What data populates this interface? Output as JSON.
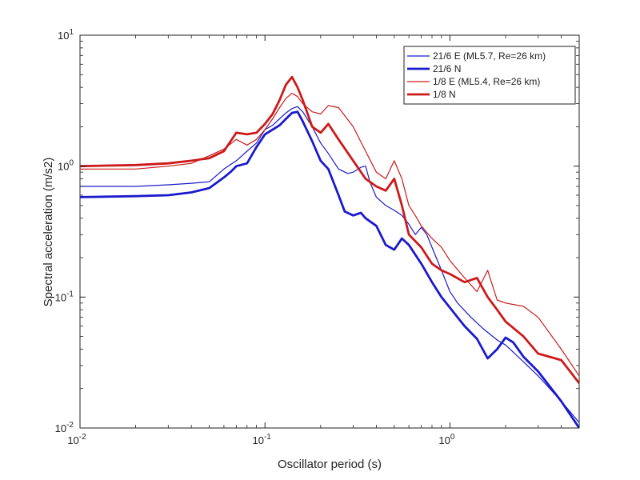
{
  "chart_data": {
    "type": "line",
    "title": "",
    "xlabel": "Oscillator period (s)",
    "ylabel": "Spectral acceleration (m/s2)",
    "xscale": "log",
    "yscale": "log",
    "xlim": [
      0.01,
      5
    ],
    "ylim": [
      0.01,
      10
    ],
    "grid": false,
    "legend_position": "top-right",
    "x_ticks": [
      {
        "value": 0.01,
        "base": "10",
        "exp": "-2"
      },
      {
        "value": 0.1,
        "base": "10",
        "exp": "-1"
      },
      {
        "value": 1,
        "base": "10",
        "exp": "0"
      }
    ],
    "y_ticks": [
      {
        "value": 0.01,
        "base": "10",
        "exp": "-2"
      },
      {
        "value": 0.1,
        "base": "10",
        "exp": "-1"
      },
      {
        "value": 1,
        "base": "10",
        "exp": "0"
      },
      {
        "value": 10,
        "base": "10",
        "exp": "1"
      }
    ],
    "series": [
      {
        "name": "21/6 E (ML5.7, Re=26 km)",
        "color": "#1a1acc",
        "weight": "thin",
        "points": [
          [
            0.01,
            0.7
          ],
          [
            0.02,
            0.7
          ],
          [
            0.03,
            0.72
          ],
          [
            0.04,
            0.74
          ],
          [
            0.05,
            0.76
          ],
          [
            0.06,
            0.95
          ],
          [
            0.07,
            1.1
          ],
          [
            0.08,
            1.3
          ],
          [
            0.09,
            1.5
          ],
          [
            0.1,
            1.9
          ],
          [
            0.11,
            2.05
          ],
          [
            0.12,
            2.3
          ],
          [
            0.13,
            2.55
          ],
          [
            0.14,
            2.75
          ],
          [
            0.15,
            2.85
          ],
          [
            0.16,
            2.6
          ],
          [
            0.18,
            2.0
          ],
          [
            0.2,
            1.5
          ],
          [
            0.22,
            1.25
          ],
          [
            0.25,
            0.95
          ],
          [
            0.28,
            0.88
          ],
          [
            0.3,
            0.9
          ],
          [
            0.33,
            0.98
          ],
          [
            0.35,
            1.0
          ],
          [
            0.37,
            0.75
          ],
          [
            0.4,
            0.58
          ],
          [
            0.45,
            0.5
          ],
          [
            0.5,
            0.46
          ],
          [
            0.55,
            0.42
          ],
          [
            0.6,
            0.36
          ],
          [
            0.65,
            0.3
          ],
          [
            0.7,
            0.34
          ],
          [
            0.75,
            0.3
          ],
          [
            0.8,
            0.24
          ],
          [
            0.9,
            0.16
          ],
          [
            1.0,
            0.11
          ],
          [
            1.1,
            0.09
          ],
          [
            1.3,
            0.07
          ],
          [
            1.5,
            0.058
          ],
          [
            1.8,
            0.047
          ],
          [
            2.0,
            0.043
          ],
          [
            2.5,
            0.032
          ],
          [
            3.0,
            0.025
          ],
          [
            4.0,
            0.016
          ],
          [
            5.0,
            0.011
          ]
        ]
      },
      {
        "name": "21/6 N",
        "color": "#1a1acc",
        "weight": "thick",
        "points": [
          [
            0.01,
            0.58
          ],
          [
            0.02,
            0.59
          ],
          [
            0.03,
            0.6
          ],
          [
            0.04,
            0.63
          ],
          [
            0.05,
            0.68
          ],
          [
            0.06,
            0.82
          ],
          [
            0.065,
            0.9
          ],
          [
            0.07,
            1.0
          ],
          [
            0.08,
            1.05
          ],
          [
            0.09,
            1.4
          ],
          [
            0.1,
            1.75
          ],
          [
            0.11,
            1.9
          ],
          [
            0.12,
            2.05
          ],
          [
            0.13,
            2.3
          ],
          [
            0.14,
            2.55
          ],
          [
            0.15,
            2.6
          ],
          [
            0.16,
            2.2
          ],
          [
            0.18,
            1.55
          ],
          [
            0.2,
            1.1
          ],
          [
            0.22,
            0.95
          ],
          [
            0.25,
            0.6
          ],
          [
            0.27,
            0.45
          ],
          [
            0.3,
            0.42
          ],
          [
            0.33,
            0.44
          ],
          [
            0.35,
            0.4
          ],
          [
            0.4,
            0.35
          ],
          [
            0.45,
            0.25
          ],
          [
            0.5,
            0.23
          ],
          [
            0.55,
            0.28
          ],
          [
            0.6,
            0.25
          ],
          [
            0.7,
            0.18
          ],
          [
            0.8,
            0.13
          ],
          [
            0.9,
            0.1
          ],
          [
            1.0,
            0.083
          ],
          [
            1.2,
            0.06
          ],
          [
            1.4,
            0.048
          ],
          [
            1.6,
            0.034
          ],
          [
            1.8,
            0.04
          ],
          [
            2.0,
            0.049
          ],
          [
            2.2,
            0.045
          ],
          [
            2.5,
            0.035
          ],
          [
            3.0,
            0.027
          ],
          [
            4.0,
            0.016
          ],
          [
            5.0,
            0.01
          ]
        ]
      },
      {
        "name": "1/8 E (ML5.4, Re=26 km)",
        "color": "#cc1a1a",
        "weight": "thin",
        "points": [
          [
            0.01,
            0.95
          ],
          [
            0.02,
            0.95
          ],
          [
            0.03,
            1.0
          ],
          [
            0.04,
            1.05
          ],
          [
            0.05,
            1.2
          ],
          [
            0.06,
            1.35
          ],
          [
            0.07,
            1.6
          ],
          [
            0.08,
            1.45
          ],
          [
            0.09,
            1.6
          ],
          [
            0.1,
            1.9
          ],
          [
            0.11,
            2.3
          ],
          [
            0.12,
            2.8
          ],
          [
            0.13,
            3.3
          ],
          [
            0.14,
            3.6
          ],
          [
            0.15,
            3.4
          ],
          [
            0.16,
            3.0
          ],
          [
            0.18,
            2.6
          ],
          [
            0.2,
            2.5
          ],
          [
            0.22,
            2.9
          ],
          [
            0.25,
            2.8
          ],
          [
            0.3,
            2.0
          ],
          [
            0.35,
            1.3
          ],
          [
            0.4,
            0.9
          ],
          [
            0.45,
            0.8
          ],
          [
            0.5,
            1.1
          ],
          [
            0.55,
            0.8
          ],
          [
            0.6,
            0.5
          ],
          [
            0.65,
            0.42
          ],
          [
            0.7,
            0.35
          ],
          [
            0.8,
            0.28
          ],
          [
            0.9,
            0.24
          ],
          [
            1.0,
            0.19
          ],
          [
            1.2,
            0.14
          ],
          [
            1.4,
            0.11
          ],
          [
            1.6,
            0.16
          ],
          [
            1.8,
            0.095
          ],
          [
            2.0,
            0.09
          ],
          [
            2.5,
            0.085
          ],
          [
            3.0,
            0.07
          ],
          [
            4.0,
            0.04
          ],
          [
            5.0,
            0.025
          ]
        ]
      },
      {
        "name": "1/8 N",
        "color": "#cc1a1a",
        "weight": "thick",
        "points": [
          [
            0.01,
            1.0
          ],
          [
            0.02,
            1.02
          ],
          [
            0.03,
            1.05
          ],
          [
            0.04,
            1.1
          ],
          [
            0.05,
            1.15
          ],
          [
            0.06,
            1.3
          ],
          [
            0.07,
            1.8
          ],
          [
            0.08,
            1.75
          ],
          [
            0.09,
            1.8
          ],
          [
            0.1,
            2.1
          ],
          [
            0.11,
            2.5
          ],
          [
            0.12,
            3.2
          ],
          [
            0.13,
            4.2
          ],
          [
            0.14,
            4.8
          ],
          [
            0.15,
            4.0
          ],
          [
            0.16,
            3.2
          ],
          [
            0.18,
            2.0
          ],
          [
            0.2,
            1.8
          ],
          [
            0.22,
            2.1
          ],
          [
            0.25,
            1.6
          ],
          [
            0.3,
            1.1
          ],
          [
            0.35,
            0.8
          ],
          [
            0.4,
            0.7
          ],
          [
            0.45,
            0.65
          ],
          [
            0.5,
            0.8
          ],
          [
            0.55,
            0.5
          ],
          [
            0.6,
            0.3
          ],
          [
            0.7,
            0.24
          ],
          [
            0.8,
            0.18
          ],
          [
            0.9,
            0.16
          ],
          [
            1.0,
            0.15
          ],
          [
            1.2,
            0.13
          ],
          [
            1.4,
            0.14
          ],
          [
            1.6,
            0.1
          ],
          [
            1.8,
            0.08
          ],
          [
            2.0,
            0.065
          ],
          [
            2.5,
            0.05
          ],
          [
            3.0,
            0.037
          ],
          [
            4.0,
            0.033
          ],
          [
            5.0,
            0.022
          ]
        ]
      }
    ]
  }
}
